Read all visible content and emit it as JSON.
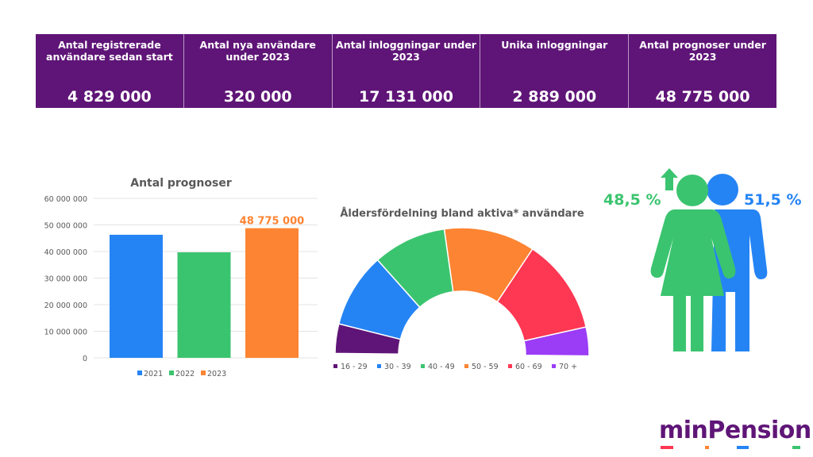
{
  "kpis": [
    {
      "label": "Antal registrerade användare sedan start",
      "value": "4 829 000"
    },
    {
      "label": "Antal nya användare under 2023",
      "value": "320 000"
    },
    {
      "label": "Antal inloggningar under 2023",
      "value": "17 131 000"
    },
    {
      "label": "Unika inloggningar",
      "value": "2 889 000"
    },
    {
      "label": "Antal prognoser under 2023",
      "value": "48 775 000"
    }
  ],
  "chart_data": [
    {
      "type": "bar",
      "title": "Antal prognoser",
      "categories": [
        "2021",
        "2022",
        "2023"
      ],
      "values": [
        46300000,
        39700000,
        48775000
      ],
      "colors": [
        "#2584f4",
        "#3bc46f",
        "#fd8432"
      ],
      "data_labels": [
        null,
        null,
        "48 775 000"
      ],
      "yticks": [
        "0",
        "10 000 000",
        "20 000 000",
        "30 000 000",
        "40 000 000",
        "50 000 000",
        "60 000 000"
      ],
      "ylim": [
        0,
        60000000
      ],
      "grid": true,
      "legend": "bottom"
    },
    {
      "type": "pie",
      "variant": "half-donut",
      "title": "Åldersfördelning bland aktiva* användare",
      "categories": [
        "16 - 29",
        "30 - 39",
        "40 - 49",
        "50 - 59",
        "60 - 69",
        "70 +"
      ],
      "values": [
        7.5,
        19,
        18.7,
        23.2,
        24.3,
        7.3
      ],
      "colors": [
        "#5f1577",
        "#2584f4",
        "#3bc46f",
        "#fd8432",
        "#fe3752",
        "#9b3cf6"
      ],
      "legend": "bottom"
    },
    {
      "type": "other",
      "variant": "gender-pictogram",
      "series": [
        {
          "name": "female",
          "value": "48,5 %",
          "color": "#3bc46f"
        },
        {
          "name": "male",
          "value": "51,5 %",
          "color": "#2584f4"
        }
      ]
    }
  ],
  "logo": {
    "text": "minPension",
    "dash_colors": [
      "#fe3752",
      "#fd8432",
      "#2584f4",
      "#3bc46f"
    ]
  }
}
